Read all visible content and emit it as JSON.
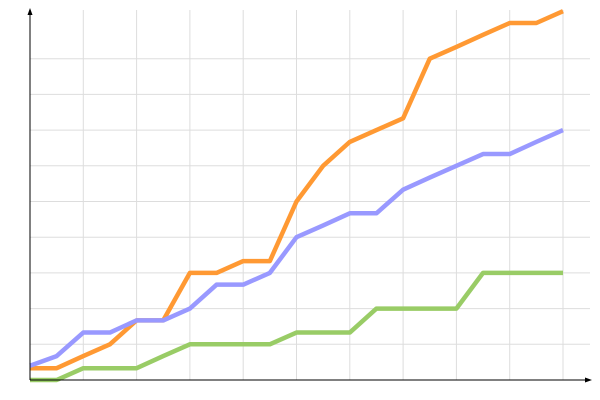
{
  "chart_data": {
    "type": "line",
    "title": "",
    "xlabel": "",
    "ylabel": "",
    "x": [
      0,
      0.5,
      1,
      1.5,
      2,
      2.5,
      3,
      3.5,
      4,
      4.5,
      5,
      5.5,
      6,
      6.5,
      7,
      7.5,
      8,
      8.5,
      9,
      9.5,
      10
    ],
    "xlim": [
      0,
      10.5
    ],
    "ylim": [
      0,
      10.4
    ],
    "grid": true,
    "legend": "none",
    "series": [
      {
        "color": "#ff9933",
        "values": [
          0.33,
          0.33,
          0.67,
          1,
          1.67,
          1.67,
          3,
          3,
          3.33,
          3.33,
          5,
          6,
          6.67,
          7,
          7.33,
          9,
          9.33,
          9.67,
          10,
          10,
          10.33
        ]
      },
      {
        "color": "#9999ff",
        "values": [
          0.4,
          0.67,
          1.33,
          1.33,
          1.67,
          1.67,
          2,
          2.67,
          2.67,
          3,
          4,
          4.33,
          4.67,
          4.67,
          5.33,
          5.67,
          6,
          6.33,
          6.33,
          6.67,
          7
        ]
      },
      {
        "color": "#99cc66",
        "values": [
          0,
          0,
          0.33,
          0.33,
          0.33,
          0.67,
          1,
          1,
          1,
          1,
          1.33,
          1.33,
          1.33,
          2,
          2,
          2,
          2,
          3,
          3,
          3,
          3
        ]
      }
    ]
  }
}
